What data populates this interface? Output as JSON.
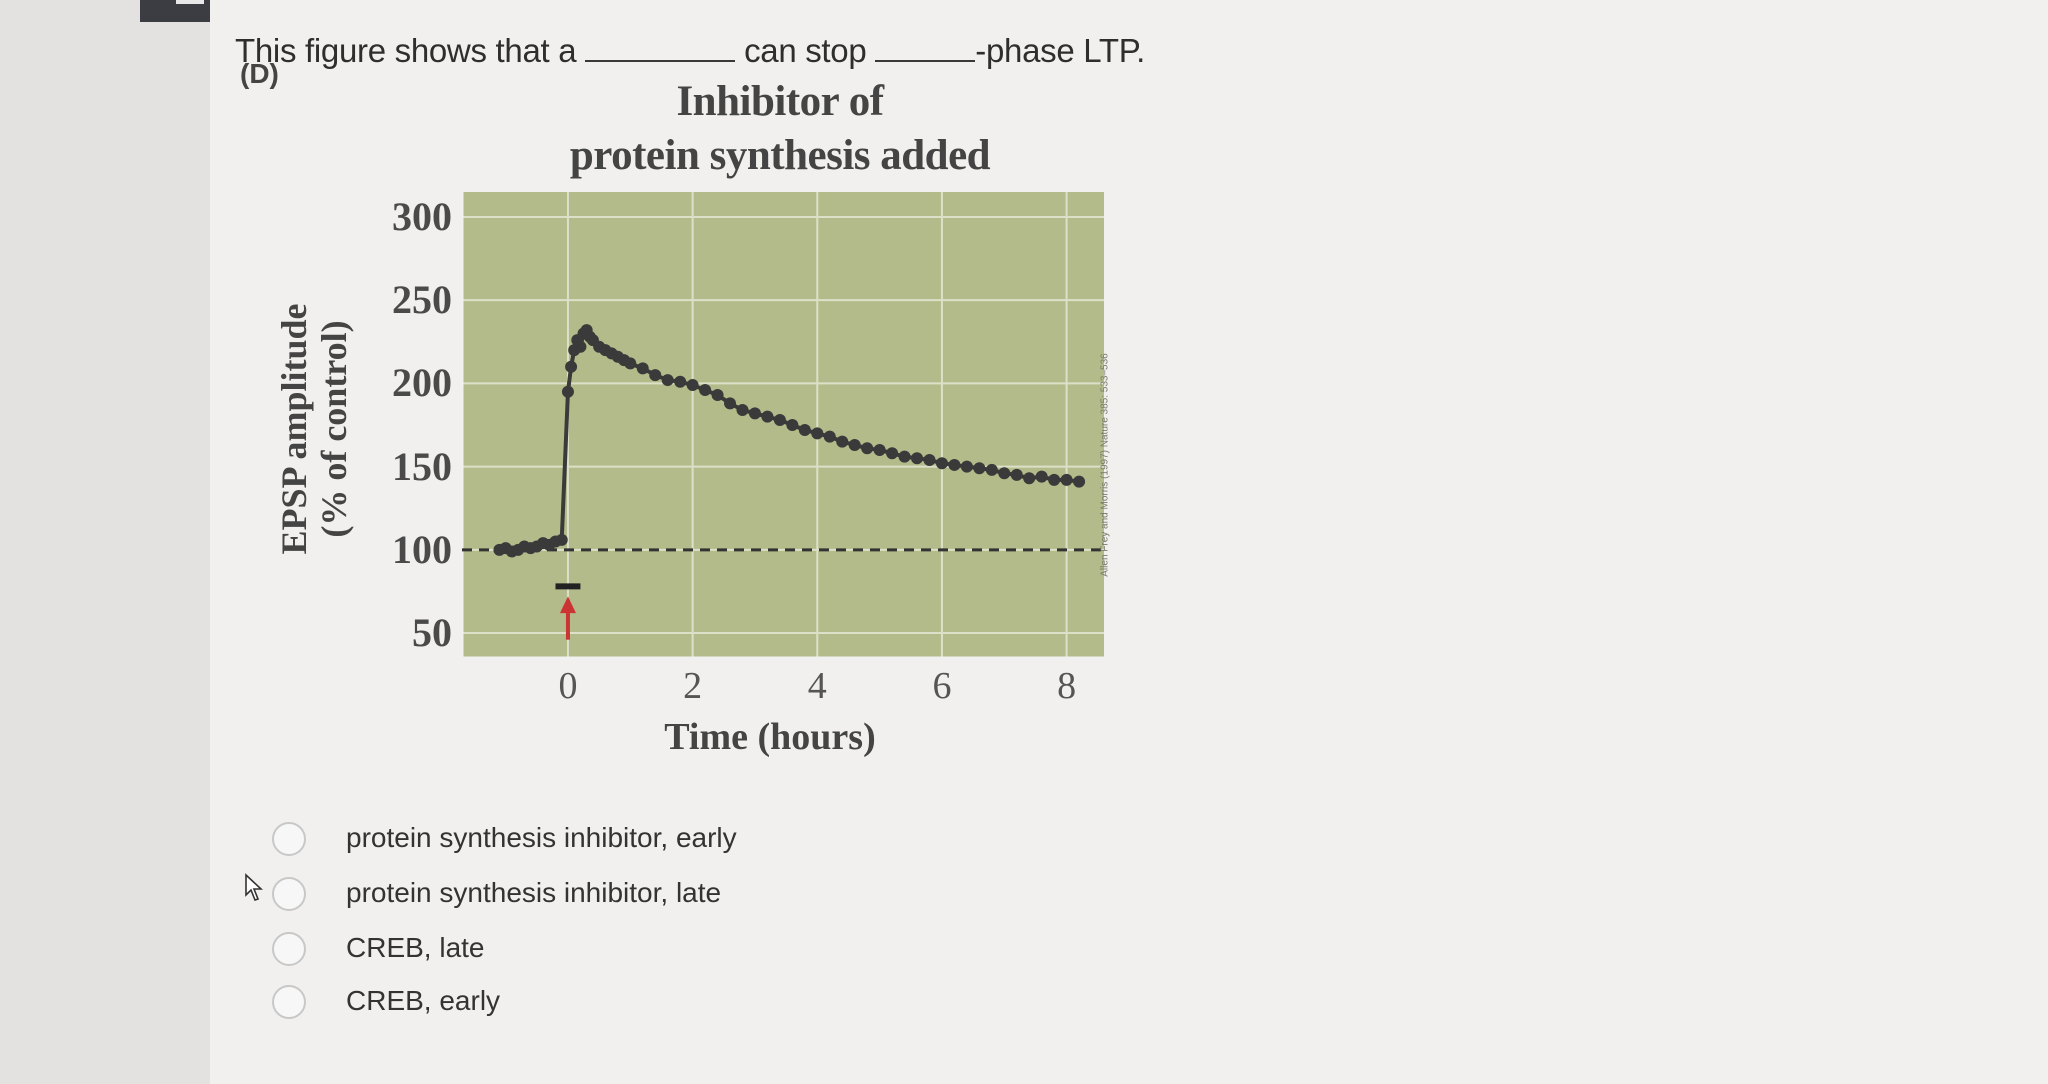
{
  "question": {
    "part1": "This figure shows that a",
    "part2": "can stop",
    "part3": "-phase LTP.",
    "part_label": "(D)"
  },
  "figure": {
    "title_line1": "Inhibitor of",
    "title_line2": "protein synthesis added",
    "credit": "Allen Frey and Morris (1997) Nature 385: 533–536"
  },
  "chart_data": {
    "type": "line",
    "title": "Inhibitor of protein synthesis added",
    "xlabel": "Time (hours)",
    "ylabel_line1": "EPSP amplitude",
    "ylabel_line2": "(% of control)",
    "x_ticks": [
      "0",
      "2",
      "4",
      "6",
      "8"
    ],
    "y_ticks": [
      "300",
      "250",
      "200",
      "150",
      "100",
      "50"
    ],
    "xlim": [
      -1.7,
      8.6
    ],
    "ylim": [
      35,
      315
    ],
    "baseline": 100,
    "inhibitor_bar": {
      "start": -0.2,
      "end": 0.2
    },
    "stimulus_time": 0,
    "series": [
      {
        "x": [
          -1.1,
          -1.0,
          -0.9,
          -0.8,
          -0.7,
          -0.6,
          -0.5,
          -0.4,
          -0.3,
          -0.2,
          -0.1,
          0.0,
          0.05,
          0.1,
          0.15,
          0.2,
          0.25,
          0.3,
          0.35,
          0.4,
          0.5,
          0.6,
          0.7,
          0.8,
          0.9,
          1.0,
          1.2,
          1.4,
          1.6,
          1.8,
          2.0,
          2.2,
          2.4,
          2.6,
          2.8,
          3.0,
          3.2,
          3.4,
          3.6,
          3.8,
          4.0,
          4.2,
          4.4,
          4.6,
          4.8,
          5.0,
          5.2,
          5.4,
          5.6,
          5.8,
          6.0,
          6.2,
          6.4,
          6.6,
          6.8,
          7.0,
          7.2,
          7.4,
          7.6,
          7.8,
          8.0,
          8.2
        ],
        "values": [
          100,
          101,
          99,
          100,
          102,
          101,
          102,
          104,
          103,
          105,
          106,
          195,
          210,
          220,
          226,
          222,
          230,
          232,
          228,
          226,
          222,
          220,
          218,
          216,
          214,
          212,
          209,
          205,
          202,
          201,
          199,
          196,
          193,
          188,
          184,
          182,
          180,
          178,
          175,
          172,
          170,
          168,
          165,
          163,
          161,
          160,
          158,
          156,
          155,
          154,
          152,
          151,
          150,
          149,
          148,
          146,
          145,
          143,
          144,
          142,
          142,
          141
        ]
      }
    ]
  },
  "options": [
    {
      "label": "protein synthesis inhibitor, early"
    },
    {
      "label": "protein synthesis inhibitor, late"
    },
    {
      "label": "CREB, late"
    },
    {
      "label": "CREB, early"
    }
  ],
  "colors": {
    "plot_bg": "#b4bb8a",
    "grid": "#dde0c8",
    "series": "#3a3a3a",
    "inhibitor_arrow": "#cc3333"
  }
}
